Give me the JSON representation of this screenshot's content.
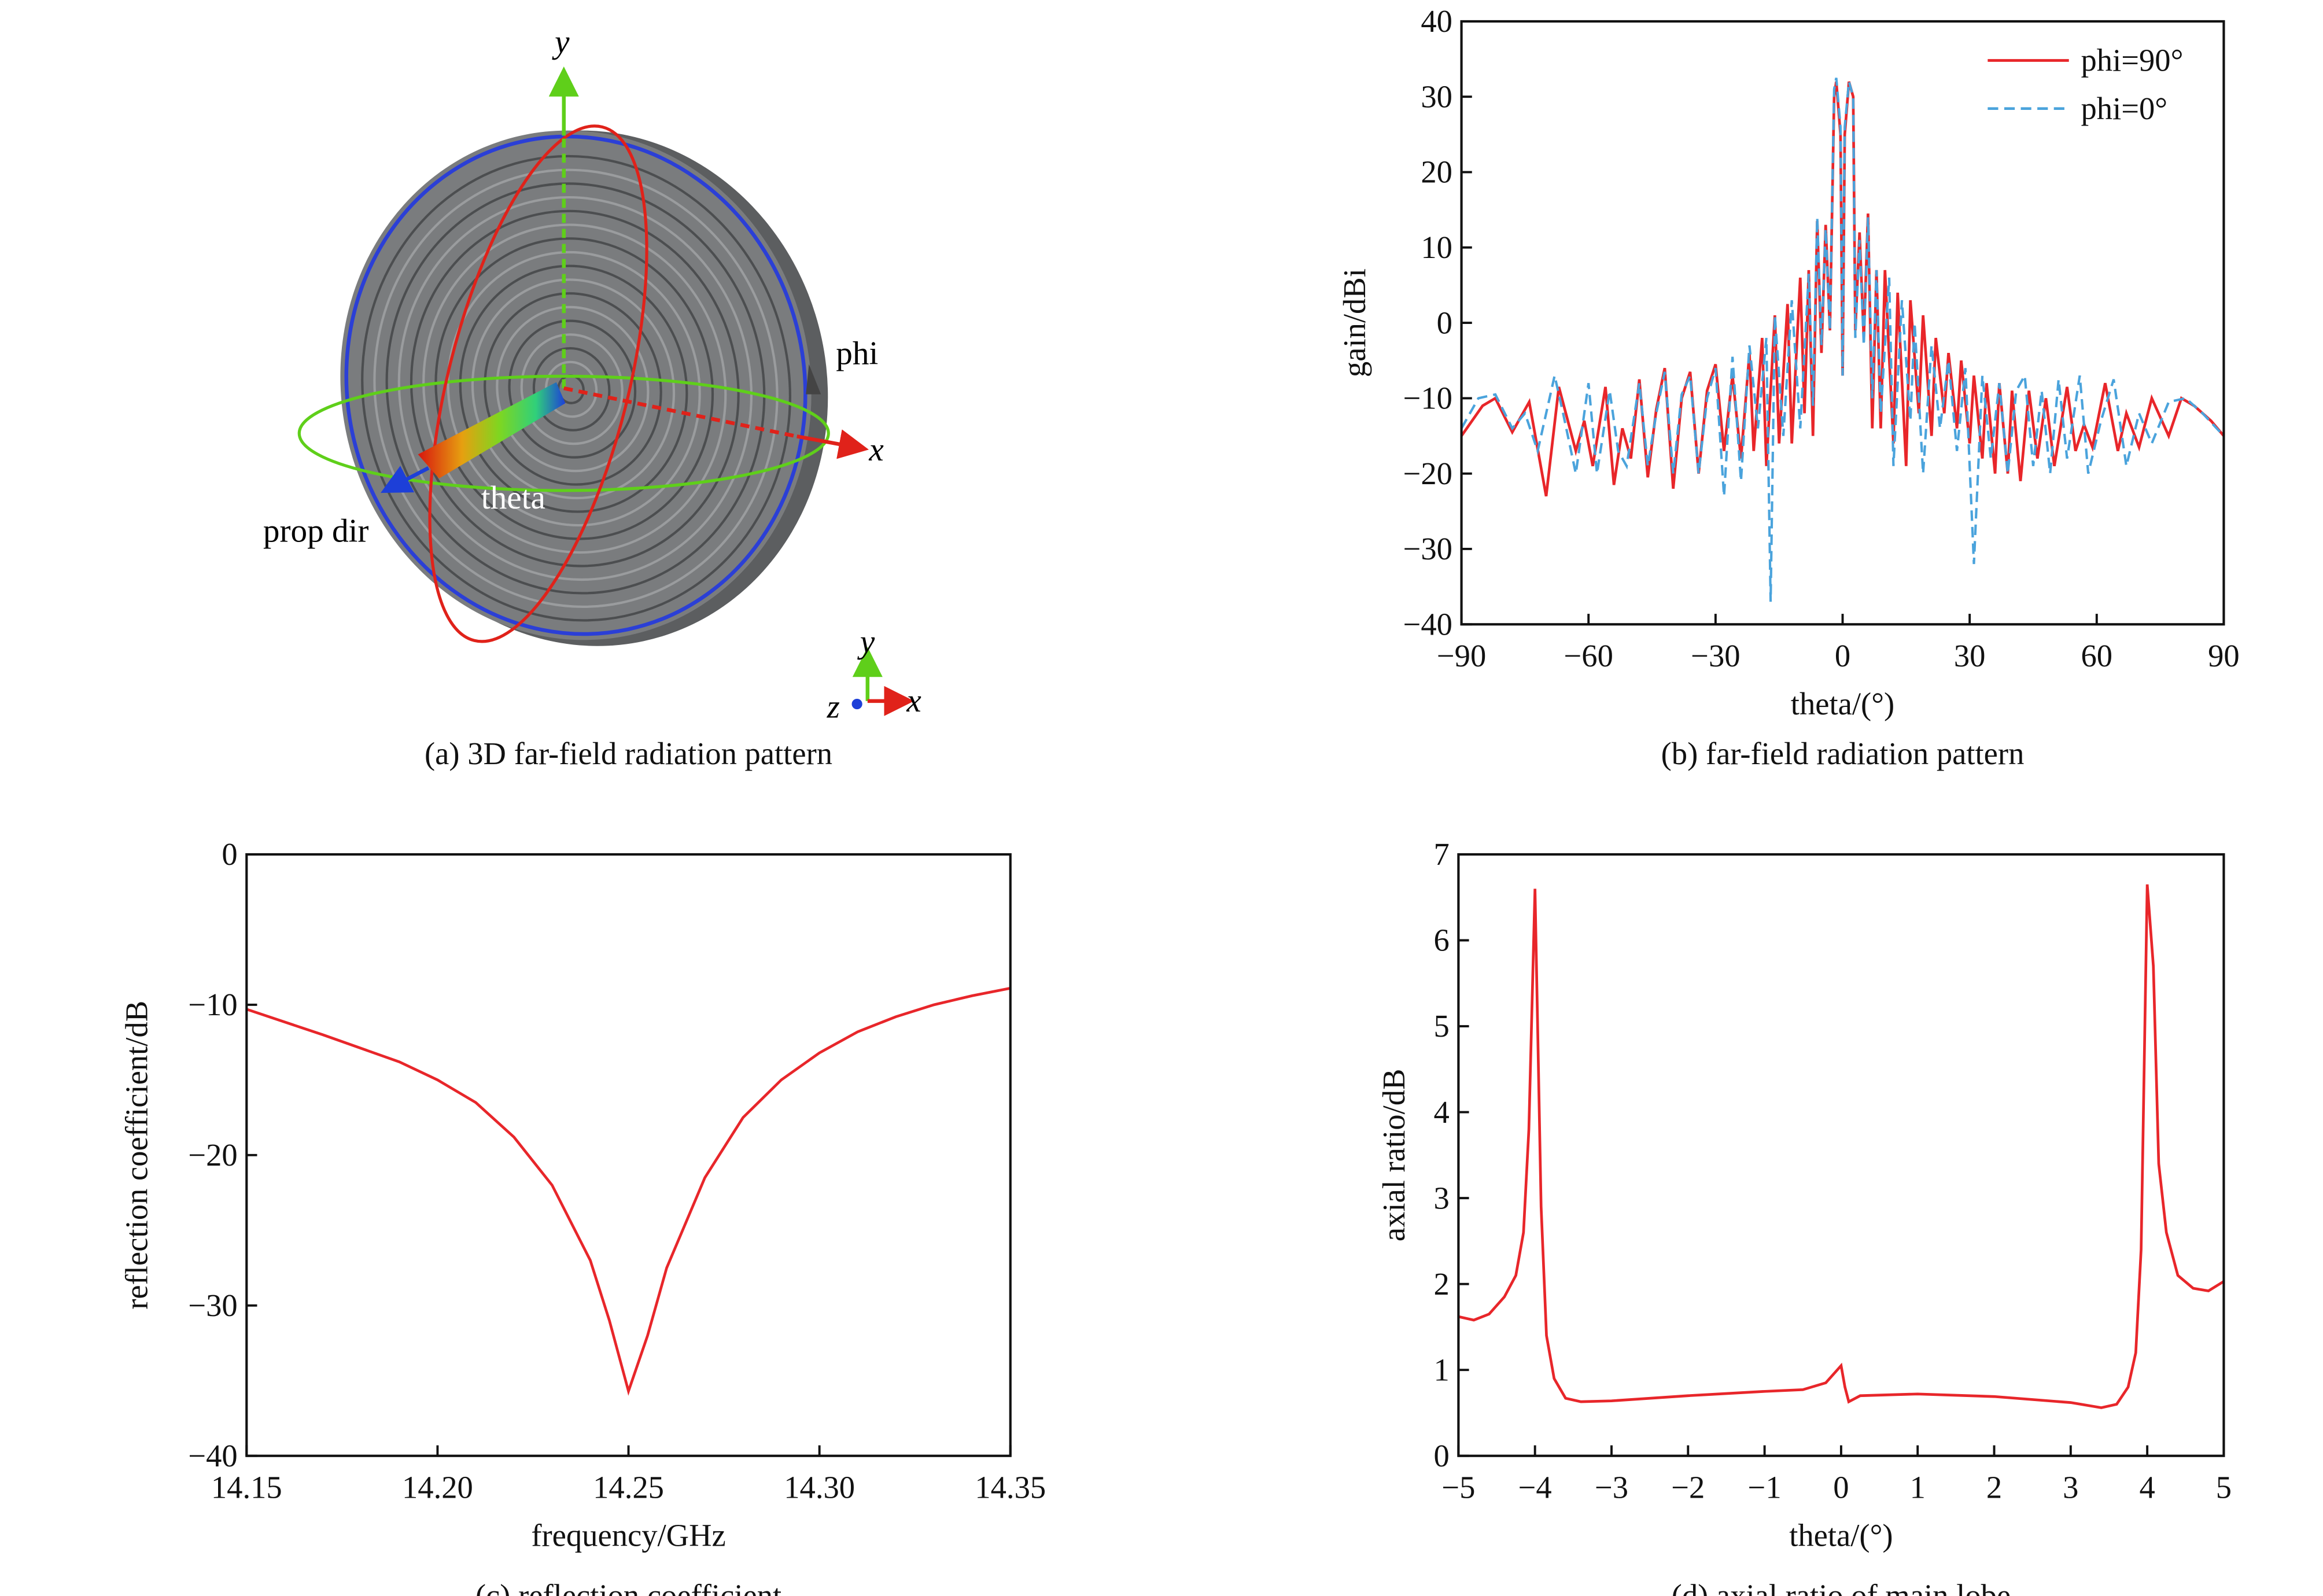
{
  "panel_a": {
    "caption": "(a) 3D far-field radiation pattern",
    "labels": {
      "y": "y",
      "x": "x",
      "phi": "phi",
      "theta": "theta",
      "prop_dir": "prop dir",
      "triad_x": "x",
      "triad_y": "y",
      "triad_z": "z"
    },
    "colors": {
      "disk": "#6e7072",
      "ring": "#2b3fd6",
      "phi_circle": "#5fcf1a",
      "theta_circle": "#e0221a",
      "y_axis": "#5fcf1a",
      "x_axis": "#e0221a"
    }
  },
  "chart_data": [
    {
      "id": "b",
      "type": "line",
      "caption": "(b) far-field radiation pattern",
      "xlabel": "theta/(°)",
      "ylabel": "gain/dBi",
      "xlim": [
        -90,
        90
      ],
      "ylim": [
        -40,
        40
      ],
      "xticks": [
        -90,
        -60,
        -30,
        0,
        30,
        60,
        90
      ],
      "yticks": [
        -40,
        -30,
        -20,
        -10,
        0,
        10,
        20,
        30,
        40
      ],
      "legend": "top-right",
      "grid": false,
      "series": [
        {
          "name": "phi=90°",
          "color": "#e8262a",
          "style": "solid",
          "x": [
            -90,
            -85,
            -82,
            -78,
            -74,
            -70,
            -67,
            -63,
            -61,
            -59,
            -56,
            -54,
            -52,
            -50,
            -48,
            -46,
            -44,
            -42,
            -40,
            -38,
            -36,
            -34,
            -32,
            -30,
            -28,
            -26,
            -24,
            -22,
            -21,
            -19,
            -18,
            -16,
            -15,
            -13,
            -12,
            -10,
            -9,
            -8,
            -7,
            -6,
            -5,
            -4,
            -3,
            -2,
            -1.5,
            -0.5,
            0,
            0.5,
            1.5,
            2.5,
            3,
            4,
            5,
            6,
            7,
            8,
            9,
            10,
            12,
            13,
            15,
            16,
            18,
            19,
            21,
            22,
            24,
            25,
            27,
            28,
            30,
            31,
            33,
            34,
            36,
            37,
            39,
            40,
            42,
            44,
            46,
            48,
            50,
            53,
            55,
            57,
            59,
            62,
            65,
            67,
            70,
            73,
            77,
            80,
            83,
            87,
            90
          ],
          "y": [
            -15,
            -11,
            -10,
            -14.5,
            -10.5,
            -23,
            -8.5,
            -17,
            -13,
            -19,
            -8.5,
            -21.5,
            -14,
            -18,
            -7.5,
            -20.5,
            -11.5,
            -6,
            -22,
            -10,
            -6.5,
            -20,
            -9,
            -5.5,
            -17,
            -7,
            -18,
            -4,
            -17,
            -2,
            -19,
            1,
            -16,
            2.5,
            -16,
            6,
            -12,
            7,
            -15,
            13.5,
            -4,
            13,
            -1,
            30,
            32,
            25,
            -7,
            25,
            32,
            30,
            -1,
            12,
            -2,
            14.5,
            -14,
            7,
            -14,
            7,
            -16,
            4,
            -19,
            3,
            -12,
            1,
            -15,
            -2,
            -12,
            -4,
            -14,
            -5,
            -16,
            -7,
            -18,
            -8,
            -20,
            -8,
            -20,
            -9,
            -21,
            -9,
            -18,
            -10,
            -19,
            -8.5,
            -17,
            -13.5,
            -16.5,
            -8,
            -17,
            -12,
            -16.5,
            -10,
            -15,
            -10,
            -11,
            -13,
            -15
          ]
        },
        {
          "name": "phi=0°",
          "color": "#4aa3dc",
          "style": "dashed",
          "x": [
            -90,
            -86,
            -82,
            -78,
            -75,
            -72,
            -68,
            -66,
            -63,
            -60,
            -58,
            -55,
            -53,
            -51,
            -48,
            -46,
            -44,
            -42,
            -40,
            -38,
            -36,
            -34,
            -32,
            -30,
            -28,
            -26,
            -24,
            -22,
            -20,
            -18,
            -17,
            -16,
            -14,
            -12,
            -10,
            -8,
            -7,
            -6,
            -5,
            -4,
            -3,
            -2,
            -1.5,
            -0.5,
            0,
            0.5,
            1.5,
            2.5,
            3,
            4,
            5,
            6,
            7,
            8,
            9,
            11,
            12,
            14,
            16,
            17,
            19,
            21,
            23,
            25,
            27,
            29,
            31,
            33,
            35,
            37,
            39,
            41,
            43,
            45,
            47,
            49,
            51,
            53,
            56,
            58,
            61,
            64,
            67,
            70,
            73,
            77,
            81,
            85,
            90
          ],
          "y": [
            -14,
            -10,
            -9.5,
            -14,
            -12,
            -17,
            -7,
            -12,
            -20,
            -8,
            -20,
            -9,
            -17,
            -19,
            -8,
            -19,
            -12,
            -6.5,
            -20,
            -9.5,
            -7,
            -20,
            -10,
            -6,
            -23,
            -4.5,
            -21,
            -3,
            -14,
            -2,
            -37,
            1,
            -15,
            3,
            -14,
            6.5,
            -11,
            14,
            -3,
            12.5,
            -1,
            31,
            32.5,
            26,
            -7,
            26,
            32,
            30,
            -2,
            11,
            -3,
            14,
            -10,
            7,
            -12,
            6,
            -19,
            3,
            -13,
            0,
            -20,
            -3,
            -14,
            -5,
            -17,
            -6,
            -32,
            -7,
            -18,
            -8,
            -20,
            -9,
            -7,
            -19,
            -9,
            -20,
            -7.5,
            -18,
            -7,
            -20,
            -13,
            -7.5,
            -19,
            -12,
            -16,
            -10.5,
            -10,
            -12,
            -15
          ]
        }
      ]
    },
    {
      "id": "c",
      "type": "line",
      "caption": "(c) reflection coefficient",
      "xlabel": "frequency/GHz",
      "ylabel": "reflection coefficient/dB",
      "xlim": [
        14.15,
        14.35
      ],
      "ylim": [
        -40,
        0
      ],
      "xticks": [
        "14.15",
        "14.20",
        "14.25",
        "14.30",
        "14.35"
      ],
      "yticks": [
        -40,
        -30,
        -20,
        -10,
        0
      ],
      "grid": false,
      "series": [
        {
          "color": "#e8262a",
          "style": "solid",
          "x": [
            14.15,
            14.17,
            14.19,
            14.2,
            14.21,
            14.22,
            14.23,
            14.24,
            14.245,
            14.25,
            14.255,
            14.26,
            14.27,
            14.28,
            14.29,
            14.3,
            14.31,
            14.32,
            14.33,
            14.34,
            14.35
          ],
          "y": [
            -10.3,
            -12,
            -13.8,
            -15,
            -16.5,
            -18.8,
            -22,
            -27,
            -31,
            -35.7,
            -32,
            -27.5,
            -21.5,
            -17.5,
            -15,
            -13.2,
            -11.8,
            -10.8,
            -10,
            -9.4,
            -8.9
          ]
        }
      ]
    },
    {
      "id": "d",
      "type": "line",
      "caption": "(d) axial ratio of main lobe",
      "xlabel": "theta/(°)",
      "ylabel": "axial ratio/dB",
      "xlim": [
        -5,
        5
      ],
      "ylim": [
        0,
        7
      ],
      "xticks": [
        -5,
        -4,
        -3,
        -2,
        -1,
        0,
        1,
        2,
        3,
        4,
        5
      ],
      "yticks": [
        0,
        1,
        2,
        3,
        4,
        5,
        6,
        7
      ],
      "grid": false,
      "series": [
        {
          "color": "#e8262a",
          "style": "solid",
          "x": [
            -5,
            -4.8,
            -4.6,
            -4.4,
            -4.25,
            -4.15,
            -4.08,
            -4.0,
            -3.92,
            -3.85,
            -3.75,
            -3.6,
            -3.4,
            -3,
            -2,
            -1,
            -0.5,
            -0.2,
            0,
            0.05,
            0.1,
            0.25,
            1,
            2,
            3,
            3.4,
            3.6,
            3.75,
            3.85,
            3.92,
            4.0,
            4.08,
            4.15,
            4.25,
            4.4,
            4.6,
            4.8,
            5
          ],
          "y": [
            1.62,
            1.58,
            1.65,
            1.85,
            2.1,
            2.6,
            3.8,
            6.6,
            2.9,
            1.4,
            0.9,
            0.67,
            0.63,
            0.64,
            0.7,
            0.75,
            0.77,
            0.85,
            1.05,
            0.8,
            0.63,
            0.7,
            0.72,
            0.69,
            0.62,
            0.56,
            0.6,
            0.8,
            1.2,
            2.4,
            6.65,
            5.7,
            3.4,
            2.6,
            2.1,
            1.95,
            1.92,
            2.03
          ]
        }
      ]
    }
  ]
}
